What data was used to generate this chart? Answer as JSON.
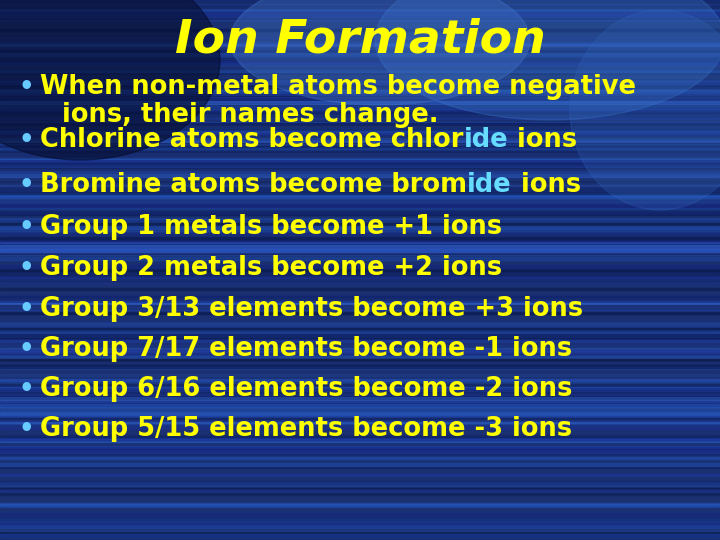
{
  "title": "Ion Formation",
  "title_color": "#FFFF00",
  "title_fontsize": 34,
  "title_italic": true,
  "background_base": "#1a3070",
  "streak_seed": 42,
  "bullet_color": "#66CCFF",
  "text_color": "#FFFF00",
  "highlight_color": "#66DDFF",
  "bullet_points": [
    {
      "lines": [
        [
          {
            "text": "When non-metal atoms become negative",
            "color": "#FFFF00"
          }
        ],
        [
          {
            "text": "ions, their names change.",
            "color": "#FFFF00",
            "indent": true
          }
        ]
      ]
    },
    {
      "lines": [
        [
          {
            "text": "Chlorine atoms become chlor",
            "color": "#FFFF00"
          },
          {
            "text": "ide",
            "color": "#66DDFF"
          },
          {
            "text": " ions",
            "color": "#FFFF00"
          }
        ]
      ]
    },
    {
      "lines": [
        [
          {
            "text": "Bromine atoms become brom",
            "color": "#FFFF00"
          },
          {
            "text": "ide",
            "color": "#66DDFF"
          },
          {
            "text": " ions",
            "color": "#FFFF00"
          }
        ]
      ]
    },
    {
      "lines": [
        [
          {
            "text": "Group 1 metals become +1 ions",
            "color": "#FFFF00"
          }
        ]
      ]
    },
    {
      "lines": [
        [
          {
            "text": "Group 2 metals become +2 ions",
            "color": "#FFFF00"
          }
        ]
      ]
    },
    {
      "lines": [
        [
          {
            "text": "Group 3/13 elements become +3 ions",
            "color": "#FFFF00"
          }
        ]
      ]
    },
    {
      "lines": [
        [
          {
            "text": "Group 7/17 elements become -1 ions",
            "color": "#FFFF00"
          }
        ]
      ]
    },
    {
      "lines": [
        [
          {
            "text": "Group 6/16 elements become -2 ions",
            "color": "#FFFF00"
          }
        ]
      ]
    },
    {
      "lines": [
        [
          {
            "text": "Group 5/15 elements become -3 ions",
            "color": "#FFFF00"
          }
        ]
      ]
    }
  ],
  "fontsize": 18.5,
  "font_weight": "bold"
}
